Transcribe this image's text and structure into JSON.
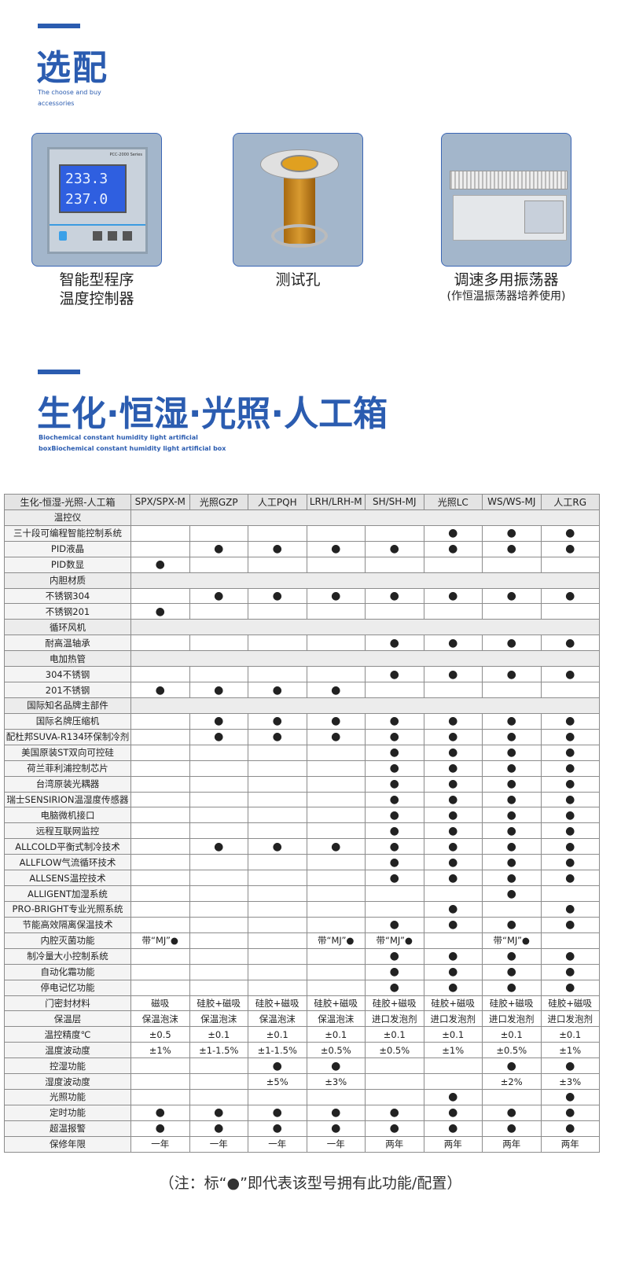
{
  "section1": {
    "title": "选配",
    "subtitle_line1": "The choose and buy",
    "subtitle_line2": "accessories"
  },
  "accessories": [
    {
      "name_line1": "智能型程序",
      "name_line2": "温度控制器",
      "display_top": "233.3",
      "display_bottom": "237.0",
      "model": "PCC-2000 Series"
    },
    {
      "name_line1": "测试孔"
    },
    {
      "name_line1": "调速多用振荡器",
      "name_line2": "(作恒温振荡器培养使用)"
    }
  ],
  "section2": {
    "title": "生化·恒湿·光照·人工箱",
    "subtitle_line1": "Biochemical constant humidity light artificial",
    "subtitle_line2": "boxBiochemical constant humidity light artificial box"
  },
  "table": {
    "headers": [
      "生化-恒湿-光照-人工箱",
      "SPX/SPX-M",
      "光照GZP",
      "人工PQH",
      "LRH/LRH-M",
      "SH/SH-MJ",
      "光照LC",
      "WS/WS-MJ",
      "人工RG"
    ],
    "rows": [
      {
        "label": "温控仪",
        "section": true
      },
      {
        "label": "三十段可编程智能控制系统",
        "cells": [
          "",
          "",
          "",
          "",
          "",
          "●",
          "●",
          "●"
        ]
      },
      {
        "label": "PID液晶",
        "cells": [
          "",
          "●",
          "●",
          "●",
          "●",
          "●",
          "●",
          "●"
        ]
      },
      {
        "label": "PID数显",
        "cells": [
          "●",
          "",
          "",
          "",
          "",
          "",
          "",
          ""
        ]
      },
      {
        "label": "内胆材质",
        "section": true
      },
      {
        "label": "不锈钢304",
        "cells": [
          "",
          "●",
          "●",
          "●",
          "●",
          "●",
          "●",
          "●"
        ]
      },
      {
        "label": "不锈钢201",
        "cells": [
          "●",
          "",
          "",
          "",
          "",
          "",
          "",
          ""
        ]
      },
      {
        "label": "循环风机",
        "section": true
      },
      {
        "label": "耐高温轴承",
        "cells": [
          "",
          "",
          "",
          "",
          "●",
          "●",
          "●",
          "●"
        ]
      },
      {
        "label": "电加热管",
        "section": true
      },
      {
        "label": "304不锈钢",
        "cells": [
          "",
          "",
          "",
          "",
          "●",
          "●",
          "●",
          "●"
        ]
      },
      {
        "label": "201不锈钢",
        "cells": [
          "●",
          "●",
          "●",
          "●",
          "",
          "",
          "",
          ""
        ]
      },
      {
        "label": "国际知名品牌主部件",
        "section": true
      },
      {
        "label": "国际名牌压缩机",
        "cells": [
          "",
          "●",
          "●",
          "●",
          "●",
          "●",
          "●",
          "●"
        ]
      },
      {
        "label": "配杜邦SUVA-R134环保制冷剂",
        "cells": [
          "",
          "●",
          "●",
          "●",
          "●",
          "●",
          "●",
          "●"
        ]
      },
      {
        "label": "美国原装ST双向可控硅",
        "cells": [
          "",
          "",
          "",
          "",
          "●",
          "●",
          "●",
          "●"
        ]
      },
      {
        "label": "荷兰菲利浦控制芯片",
        "cells": [
          "",
          "",
          "",
          "",
          "●",
          "●",
          "●",
          "●"
        ]
      },
      {
        "label": "台湾原装光耦器",
        "cells": [
          "",
          "",
          "",
          "",
          "●",
          "●",
          "●",
          "●"
        ]
      },
      {
        "label": "瑞士SENSIRION温湿度传感器",
        "cells": [
          "",
          "",
          "",
          "",
          "●",
          "●",
          "●",
          "●"
        ]
      },
      {
        "label": "电脑微机接口",
        "cells": [
          "",
          "",
          "",
          "",
          "●",
          "●",
          "●",
          "●"
        ]
      },
      {
        "label": "远程互联网监控",
        "cells": [
          "",
          "",
          "",
          "",
          "●",
          "●",
          "●",
          "●"
        ]
      },
      {
        "label": "ALLCOLD平衡式制冷技术",
        "cells": [
          "",
          "●",
          "●",
          "●",
          "●",
          "●",
          "●",
          "●"
        ]
      },
      {
        "label": "ALLFLOW气流循环技术",
        "cells": [
          "",
          "",
          "",
          "",
          "●",
          "●",
          "●",
          "●"
        ]
      },
      {
        "label": "ALLSENS温控技术",
        "cells": [
          "",
          "",
          "",
          "",
          "●",
          "●",
          "●",
          "●"
        ]
      },
      {
        "label": "ALLIGENT加湿系统",
        "cells": [
          "",
          "",
          "",
          "",
          "",
          "",
          "●",
          ""
        ]
      },
      {
        "label": "PRO-BRIGHT专业光照系统",
        "cells": [
          "",
          "",
          "",
          "",
          "",
          "●",
          "",
          "●"
        ]
      },
      {
        "label": "节能高效隔离保温技术",
        "cells": [
          "",
          "",
          "",
          "",
          "●",
          "●",
          "●",
          "●"
        ]
      },
      {
        "label": "内腔灭菌功能",
        "cells": [
          "带“MJ”●",
          "",
          "",
          "带“MJ”●",
          "带“MJ”●",
          "",
          "带“MJ”●",
          ""
        ]
      },
      {
        "label": "制冷量大小控制系统",
        "cells": [
          "",
          "",
          "",
          "",
          "●",
          "●",
          "●",
          "●"
        ]
      },
      {
        "label": "自动化霜功能",
        "cells": [
          "",
          "",
          "",
          "",
          "●",
          "●",
          "●",
          "●"
        ]
      },
      {
        "label": "停电记忆功能",
        "cells": [
          "",
          "",
          "",
          "",
          "●",
          "●",
          "●",
          "●"
        ]
      },
      {
        "label": "门密封材料",
        "cells": [
          "磁吸",
          "硅胶+磁吸",
          "硅胶+磁吸",
          "硅胶+磁吸",
          "硅胶+磁吸",
          "硅胶+磁吸",
          "硅胶+磁吸",
          "硅胶+磁吸"
        ]
      },
      {
        "label": "保温层",
        "cells": [
          "保温泡沫",
          "保温泡沫",
          "保温泡沫",
          "保温泡沫",
          "进口发泡剂",
          "进口发泡剂",
          "进口发泡剂",
          "进口发泡剂"
        ]
      },
      {
        "label": "温控精度℃",
        "cells": [
          "±0.5",
          "±0.1",
          "±0.1",
          "±0.1",
          "±0.1",
          "±0.1",
          "±0.1",
          "±0.1"
        ]
      },
      {
        "label": "温度波动度",
        "cells": [
          "±1%",
          "±1-1.5%",
          "±1-1.5%",
          "±0.5%",
          "±0.5%",
          "±1%",
          "±0.5%",
          "±1%"
        ]
      },
      {
        "label": "控湿功能",
        "cells": [
          "",
          "",
          "●",
          "●",
          "",
          "",
          "●",
          "●"
        ]
      },
      {
        "label": "湿度波动度",
        "cells": [
          "",
          "",
          "±5%",
          "±3%",
          "",
          "",
          "±2%",
          "±3%"
        ]
      },
      {
        "label": "光照功能",
        "cells": [
          "",
          "",
          "",
          "",
          "",
          "●",
          "",
          "●"
        ]
      },
      {
        "label": "定时功能",
        "cells": [
          "●",
          "●",
          "●",
          "●",
          "●",
          "●",
          "●",
          "●"
        ]
      },
      {
        "label": "超温报警",
        "cells": [
          "●",
          "●",
          "●",
          "●",
          "●",
          "●",
          "●",
          "●"
        ]
      },
      {
        "label": "保修年限",
        "cells": [
          "一年",
          "一年",
          "一年",
          "一年",
          "两年",
          "两年",
          "两年",
          "两年"
        ]
      }
    ]
  },
  "note": "（注：标“●”即代表该型号拥有此功能/配置）",
  "colors": {
    "brand": "#2b5cb0",
    "card_bg": "#a3b6cb"
  }
}
